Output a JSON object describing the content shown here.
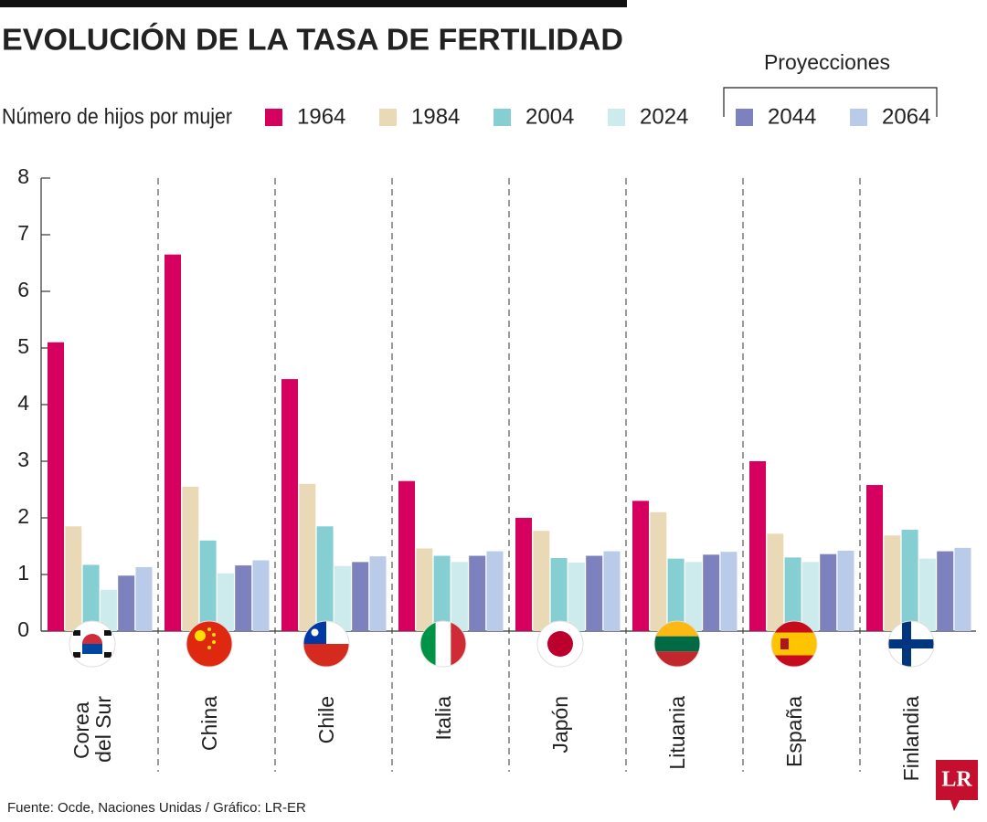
{
  "chart_data": {
    "type": "bar",
    "title": "EVOLUCIÓN DE LA TASA DE FERTILIDAD",
    "subtitle": "Número de hijos por mujer",
    "annotation": "Proyecciones",
    "source": "Fuente: Ocde, Naciones Unidas / Gráfico: LR-ER",
    "logo": "LR",
    "categories": [
      "Corea del Sur",
      "China",
      "Chile",
      "Italia",
      "Japón",
      "Lituania",
      "España",
      "Finlandia"
    ],
    "series": [
      {
        "name": "1964",
        "color": "#d6005f",
        "values": [
          5.1,
          6.65,
          4.45,
          2.65,
          2.0,
          2.3,
          3.0,
          2.58
        ]
      },
      {
        "name": "1984",
        "color": "#e9d9b6",
        "values": [
          1.85,
          2.55,
          2.6,
          1.46,
          1.77,
          2.1,
          1.72,
          1.69
        ]
      },
      {
        "name": "2004",
        "color": "#85cfd2",
        "values": [
          1.17,
          1.6,
          1.85,
          1.33,
          1.29,
          1.28,
          1.3,
          1.79
        ]
      },
      {
        "name": "2024",
        "color": "#cdeaec",
        "values": [
          0.73,
          1.02,
          1.15,
          1.22,
          1.21,
          1.22,
          1.22,
          1.28
        ]
      },
      {
        "name": "2044",
        "color": "#7d82bf",
        "values": [
          0.98,
          1.16,
          1.22,
          1.33,
          1.33,
          1.35,
          1.36,
          1.41
        ]
      },
      {
        "name": "2064",
        "color": "#b9cbe8",
        "values": [
          1.13,
          1.25,
          1.32,
          1.41,
          1.41,
          1.4,
          1.42,
          1.47
        ]
      }
    ],
    "ylim": [
      0,
      8
    ],
    "yticks": [
      0,
      1,
      2,
      3,
      4,
      5,
      6,
      7,
      8
    ],
    "grid": false
  }
}
